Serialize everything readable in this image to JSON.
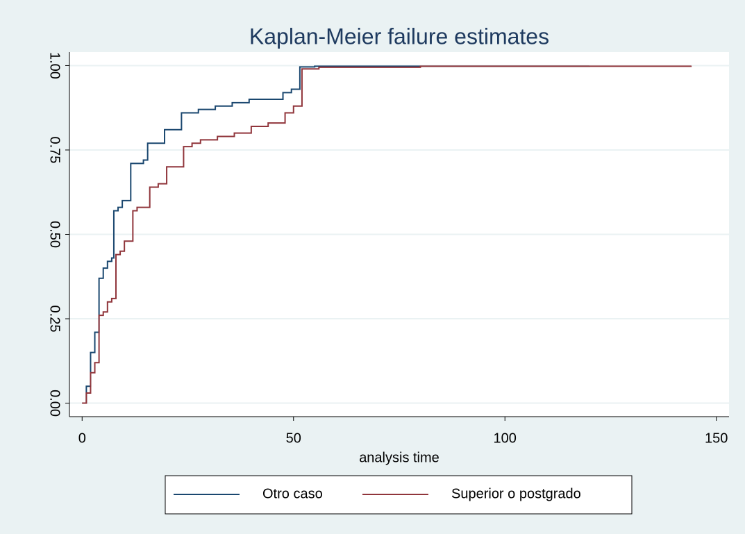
{
  "chart_data": {
    "type": "line",
    "step": "post",
    "title": "Kaplan-Meier failure estimates",
    "xlabel": "analysis time",
    "xlim": [
      -3,
      153
    ],
    "xticks": [
      0,
      50,
      100,
      150
    ],
    "ylim": [
      -0.04,
      1.04
    ],
    "yticks": [
      {
        "value": 0,
        "label": "0.00"
      },
      {
        "value": 0.25,
        "label": "0.25"
      },
      {
        "value": 0.5,
        "label": "0.50"
      },
      {
        "value": 0.75,
        "label": "0.75"
      },
      {
        "value": 1,
        "label": "1.00"
      }
    ],
    "grid": true,
    "legend": "bottom",
    "series": [
      {
        "name": "Otro caso",
        "color": "#1a476f",
        "x": [
          0,
          1,
          2,
          3,
          4,
          5,
          6,
          7,
          7.5,
          8.5,
          9.5,
          11.5,
          13.5,
          14.5,
          15.5,
          17.5,
          19.5,
          21.5,
          23.5,
          25.5,
          27.5,
          29.5,
          31.5,
          35.5,
          39.5,
          43.5,
          47.5,
          49.5,
          51.5,
          55,
          120
        ],
        "values": [
          0,
          0.05,
          0.15,
          0.21,
          0.37,
          0.4,
          0.42,
          0.43,
          0.57,
          0.58,
          0.6,
          0.71,
          0.71,
          0.72,
          0.77,
          0.77,
          0.81,
          0.81,
          0.86,
          0.86,
          0.87,
          0.87,
          0.88,
          0.89,
          0.9,
          0.9,
          0.92,
          0.93,
          0.996,
          0.998,
          1.0
        ]
      },
      {
        "name": "Superior o postgrado",
        "color": "#90353b",
        "x": [
          0,
          1,
          2,
          3,
          4,
          5,
          6,
          7,
          8,
          9,
          10,
          12,
          13,
          14,
          16,
          18,
          20,
          24,
          26,
          28,
          32,
          36,
          40,
          44,
          48,
          50,
          52,
          56,
          80,
          144
        ],
        "values": [
          0,
          0.03,
          0.09,
          0.12,
          0.26,
          0.27,
          0.3,
          0.31,
          0.44,
          0.45,
          0.48,
          0.57,
          0.58,
          0.58,
          0.64,
          0.65,
          0.7,
          0.76,
          0.77,
          0.78,
          0.79,
          0.8,
          0.82,
          0.83,
          0.86,
          0.88,
          0.99,
          0.995,
          0.998,
          1.0
        ]
      }
    ]
  }
}
